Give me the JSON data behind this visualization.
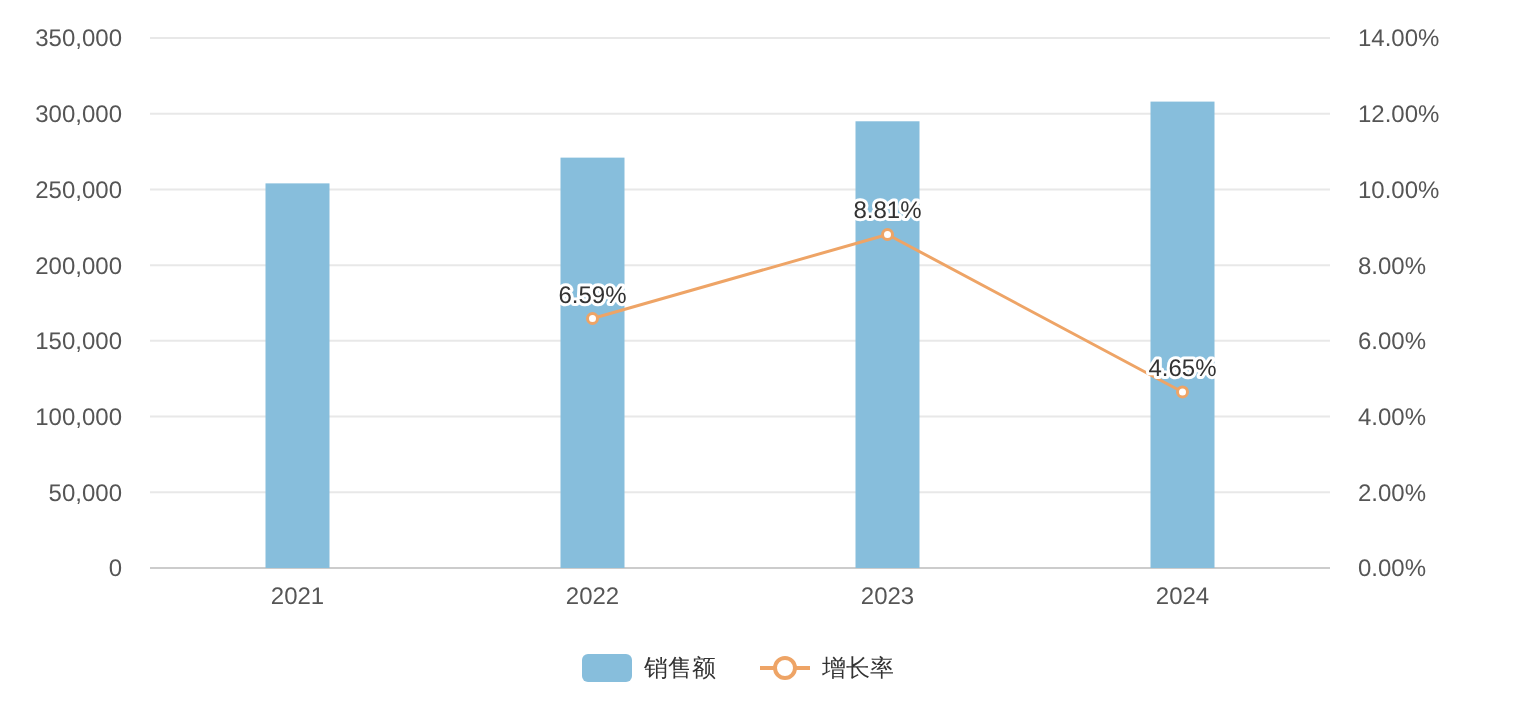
{
  "chart_data": {
    "type": "bar",
    "categories": [
      "2021",
      "2022",
      "2023",
      "2024"
    ],
    "series": [
      {
        "name": "销售额",
        "color": "#87bedc",
        "values": [
          254000,
          271000,
          295000,
          308000
        ]
      },
      {
        "name": "增长率",
        "type": "line",
        "axis": "y2",
        "color": "#eea466",
        "values": [
          null,
          6.59,
          8.81,
          4.65
        ],
        "value_labels": [
          null,
          "6.59%",
          "8.81%",
          "4.65%"
        ]
      }
    ],
    "ylim": [
      0,
      350000
    ],
    "yticks": [
      {
        "value": 0,
        "label": "0"
      },
      {
        "value": 50000,
        "label": "50,000"
      },
      {
        "value": 100000,
        "label": "100,000"
      },
      {
        "value": 150000,
        "label": "150,000"
      },
      {
        "value": 200000,
        "label": "200,000"
      },
      {
        "value": 250000,
        "label": "250,000"
      },
      {
        "value": 300000,
        "label": "300,000"
      },
      {
        "value": 350000,
        "label": "350,000"
      }
    ],
    "y2lim": [
      0,
      14
    ],
    "y2ticks": [
      {
        "value": 0,
        "label": "0.00%"
      },
      {
        "value": 2,
        "label": "2.00%"
      },
      {
        "value": 4,
        "label": "4.00%"
      },
      {
        "value": 6,
        "label": "6.00%"
      },
      {
        "value": 8,
        "label": "8.00%"
      },
      {
        "value": 10,
        "label": "10.00%"
      },
      {
        "value": 12,
        "label": "12.00%"
      },
      {
        "value": 14,
        "label": "14.00%"
      }
    ],
    "grid": "y",
    "legend": "bottom",
    "marker": "circle",
    "line_style": "solid"
  }
}
